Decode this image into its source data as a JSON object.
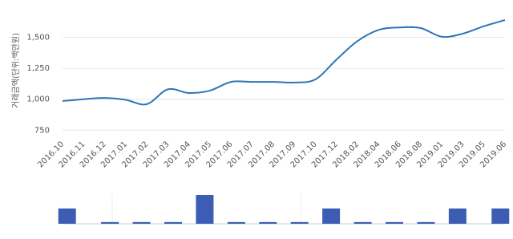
{
  "chart_data": [
    {
      "type": "line",
      "y_label": "거래금액(단위:백만원)",
      "categories": [
        "2016.10",
        "2016.11",
        "2016.12",
        "2017.01",
        "2017.02",
        "2017.03",
        "2017.04",
        "2017.05",
        "2017.06",
        "2017.07",
        "2017.08",
        "2017.09",
        "2017.10",
        "2017.12",
        "2018.02",
        "2018.04",
        "2018.06",
        "2018.08",
        "2019.01",
        "2019.03",
        "2019.05",
        "2019.06"
      ],
      "series": [
        {
          "color": "#2e75b6",
          "values": [
            985,
            1000,
            1010,
            995,
            960,
            1080,
            1050,
            1070,
            1140,
            1140,
            1140,
            1135,
            1160,
            1320,
            1470,
            1560,
            1580,
            1575,
            1505,
            1530,
            1590,
            1640
          ]
        }
      ],
      "ylim": [
        700,
        1750
      ],
      "yticks": [
        {
          "value": 750,
          "label": "750"
        },
        {
          "value": 1000,
          "label": "1,000"
        },
        {
          "value": 1250,
          "label": "1,250"
        },
        {
          "value": 1500,
          "label": "1,500"
        }
      ],
      "grid": true
    },
    {
      "type": "bar",
      "color": "#3d5db5",
      "values": [
        9,
        1,
        1,
        1,
        17,
        1,
        1,
        1,
        9,
        1,
        1,
        1,
        9,
        9
      ],
      "ylim": [
        0,
        17
      ]
    }
  ]
}
